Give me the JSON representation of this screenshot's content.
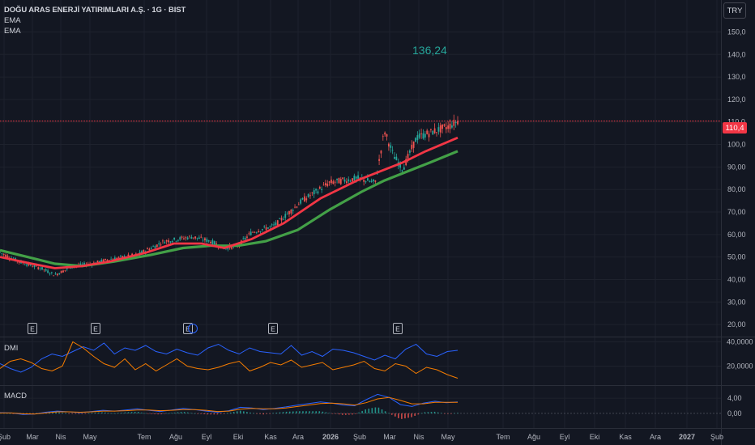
{
  "legend": {
    "title": "DOĞU ARAS ENERJİ YATIRIMLARI A.Ş. · 1G · BIST",
    "ema1_label": "EMA",
    "ema2_label": "EMA"
  },
  "currency": "TRY",
  "callout": "136,24",
  "last_price_label": "110,4",
  "dmi_label": "DMI",
  "macd_label": "MACD",
  "event_marker": "E",
  "colors": {
    "background": "#131722",
    "up": "#26a69a",
    "down": "#ef5350",
    "ema_fast": "#f23645",
    "ema_slow": "#43a047",
    "dmi_plus": "#2962ff",
    "dmi_minus": "#f57c00",
    "macd_line": "#2962ff",
    "signal_line": "#f57c00",
    "price_line": "#f23645"
  },
  "chart_data": [
    {
      "type": "candlestick",
      "x_tick_labels": [
        "Şub",
        "Mar",
        "Nis",
        "May",
        "Tem",
        "Ağu",
        "Eyl",
        "Eki",
        "Kas",
        "Ara",
        "2026",
        "Şub",
        "Mar",
        "Nis",
        "May",
        "Tem",
        "Ağu",
        "Eyl",
        "Eki",
        "Kas",
        "Ara",
        "2027",
        "Şub"
      ],
      "y_ticks": [
        "20,00",
        "30,00",
        "40,00",
        "50,00",
        "60,00",
        "70,00",
        "80,00",
        "90,00",
        "100,0",
        "110,0",
        "120,0",
        "130,0",
        "140,0",
        "150,0"
      ],
      "ylim": [
        15,
        157
      ],
      "last_price": 110.4,
      "event_markers_month": [
        "Mar",
        "May",
        "Ağu",
        "Kas",
        "Mar"
      ],
      "price_path": [
        [
          0,
          52
        ],
        [
          0.04,
          48
        ],
        [
          0.09,
          45
        ],
        [
          0.12,
          42
        ],
        [
          0.16,
          46
        ],
        [
          0.2,
          47
        ],
        [
          0.24,
          49
        ],
        [
          0.3,
          51
        ],
        [
          0.36,
          57
        ],
        [
          0.42,
          59
        ],
        [
          0.46,
          57
        ],
        [
          0.49,
          54
        ],
        [
          0.52,
          55
        ],
        [
          0.55,
          61
        ],
        [
          0.6,
          64
        ],
        [
          0.66,
          75
        ],
        [
          0.72,
          83
        ],
        [
          0.78,
          85
        ],
        [
          0.82,
          83
        ],
        [
          0.84,
          106
        ],
        [
          0.86,
          95
        ],
        [
          0.88,
          89
        ],
        [
          0.91,
          103
        ],
        [
          0.95,
          106
        ],
        [
          0.98,
          108
        ],
        [
          1,
          110.4
        ]
      ],
      "ema_fast_path": [
        [
          0,
          50
        ],
        [
          0.07,
          47
        ],
        [
          0.12,
          45
        ],
        [
          0.18,
          46
        ],
        [
          0.24,
          48
        ],
        [
          0.32,
          52
        ],
        [
          0.38,
          56
        ],
        [
          0.44,
          56
        ],
        [
          0.49,
          54
        ],
        [
          0.55,
          58
        ],
        [
          0.62,
          65
        ],
        [
          0.7,
          76
        ],
        [
          0.78,
          84
        ],
        [
          0.83,
          88
        ],
        [
          0.88,
          92
        ],
        [
          0.93,
          97
        ],
        [
          1,
          103
        ]
      ],
      "ema_slow_path": [
        [
          0,
          53
        ],
        [
          0.06,
          50
        ],
        [
          0.12,
          47
        ],
        [
          0.18,
          46
        ],
        [
          0.25,
          48
        ],
        [
          0.33,
          51
        ],
        [
          0.4,
          54
        ],
        [
          0.46,
          55
        ],
        [
          0.52,
          55
        ],
        [
          0.58,
          57
        ],
        [
          0.65,
          62
        ],
        [
          0.72,
          71
        ],
        [
          0.79,
          79
        ],
        [
          0.84,
          84
        ],
        [
          0.89,
          88
        ],
        [
          0.94,
          92
        ],
        [
          1,
          97
        ]
      ]
    },
    {
      "type": "line",
      "name": "DMI",
      "y_ticks": [
        "20,0000",
        "40,0000"
      ],
      "ylim": [
        5,
        43
      ],
      "series": [
        {
          "values": [
            22,
            18,
            15,
            19,
            26,
            30,
            28,
            32,
            36,
            33,
            39,
            30,
            35,
            33,
            37,
            32,
            30,
            34,
            31,
            29,
            35,
            38,
            33,
            30,
            35,
            32,
            31,
            30,
            37,
            29,
            32,
            28,
            34,
            33,
            31,
            28,
            25,
            29,
            26,
            34,
            38,
            30,
            28,
            32,
            33
          ]
        },
        {
          "values": [
            18,
            24,
            26,
            23,
            18,
            16,
            20,
            40,
            35,
            28,
            22,
            19,
            26,
            17,
            22,
            16,
            21,
            26,
            20,
            18,
            17,
            19,
            22,
            24,
            16,
            19,
            23,
            21,
            25,
            19,
            21,
            23,
            17,
            19,
            21,
            24,
            18,
            16,
            22,
            20,
            14,
            19,
            17,
            13,
            10
          ]
        }
      ]
    },
    {
      "type": "line",
      "name": "MACD",
      "y_ticks": [
        "0,00",
        "4,00"
      ],
      "ylim": [
        -3,
        7
      ],
      "series": [
        {
          "values": [
            0.2,
            0.1,
            -0.3,
            -0.2,
            0.3,
            0.6,
            0.4,
            0.2,
            0.5,
            0.8,
            0.6,
            0.9,
            1.2,
            0.8,
            0.5,
            0.9,
            1.3,
            1.0,
            0.6,
            0.3,
            0.7,
            1.6,
            1.4,
            1.0,
            1.3,
            1.7,
            2.2,
            2.6,
            3.0,
            2.7,
            2.2,
            2.0,
            3.6,
            5.0,
            4.2,
            2.3,
            1.8,
            2.7,
            3.2,
            2.8,
            3.0
          ]
        },
        {
          "values": [
            0.1,
            0.1,
            -0.1,
            -0.2,
            0.1,
            0.4,
            0.4,
            0.3,
            0.4,
            0.6,
            0.6,
            0.7,
            0.9,
            0.9,
            0.7,
            0.8,
            1.0,
            1.0,
            0.8,
            0.5,
            0.6,
            1.1,
            1.3,
            1.2,
            1.2,
            1.4,
            1.8,
            2.2,
            2.6,
            2.7,
            2.5,
            2.2,
            2.8,
            3.8,
            4.2,
            3.4,
            2.5,
            2.5,
            2.9,
            2.9,
            2.9
          ]
        }
      ]
    }
  ]
}
